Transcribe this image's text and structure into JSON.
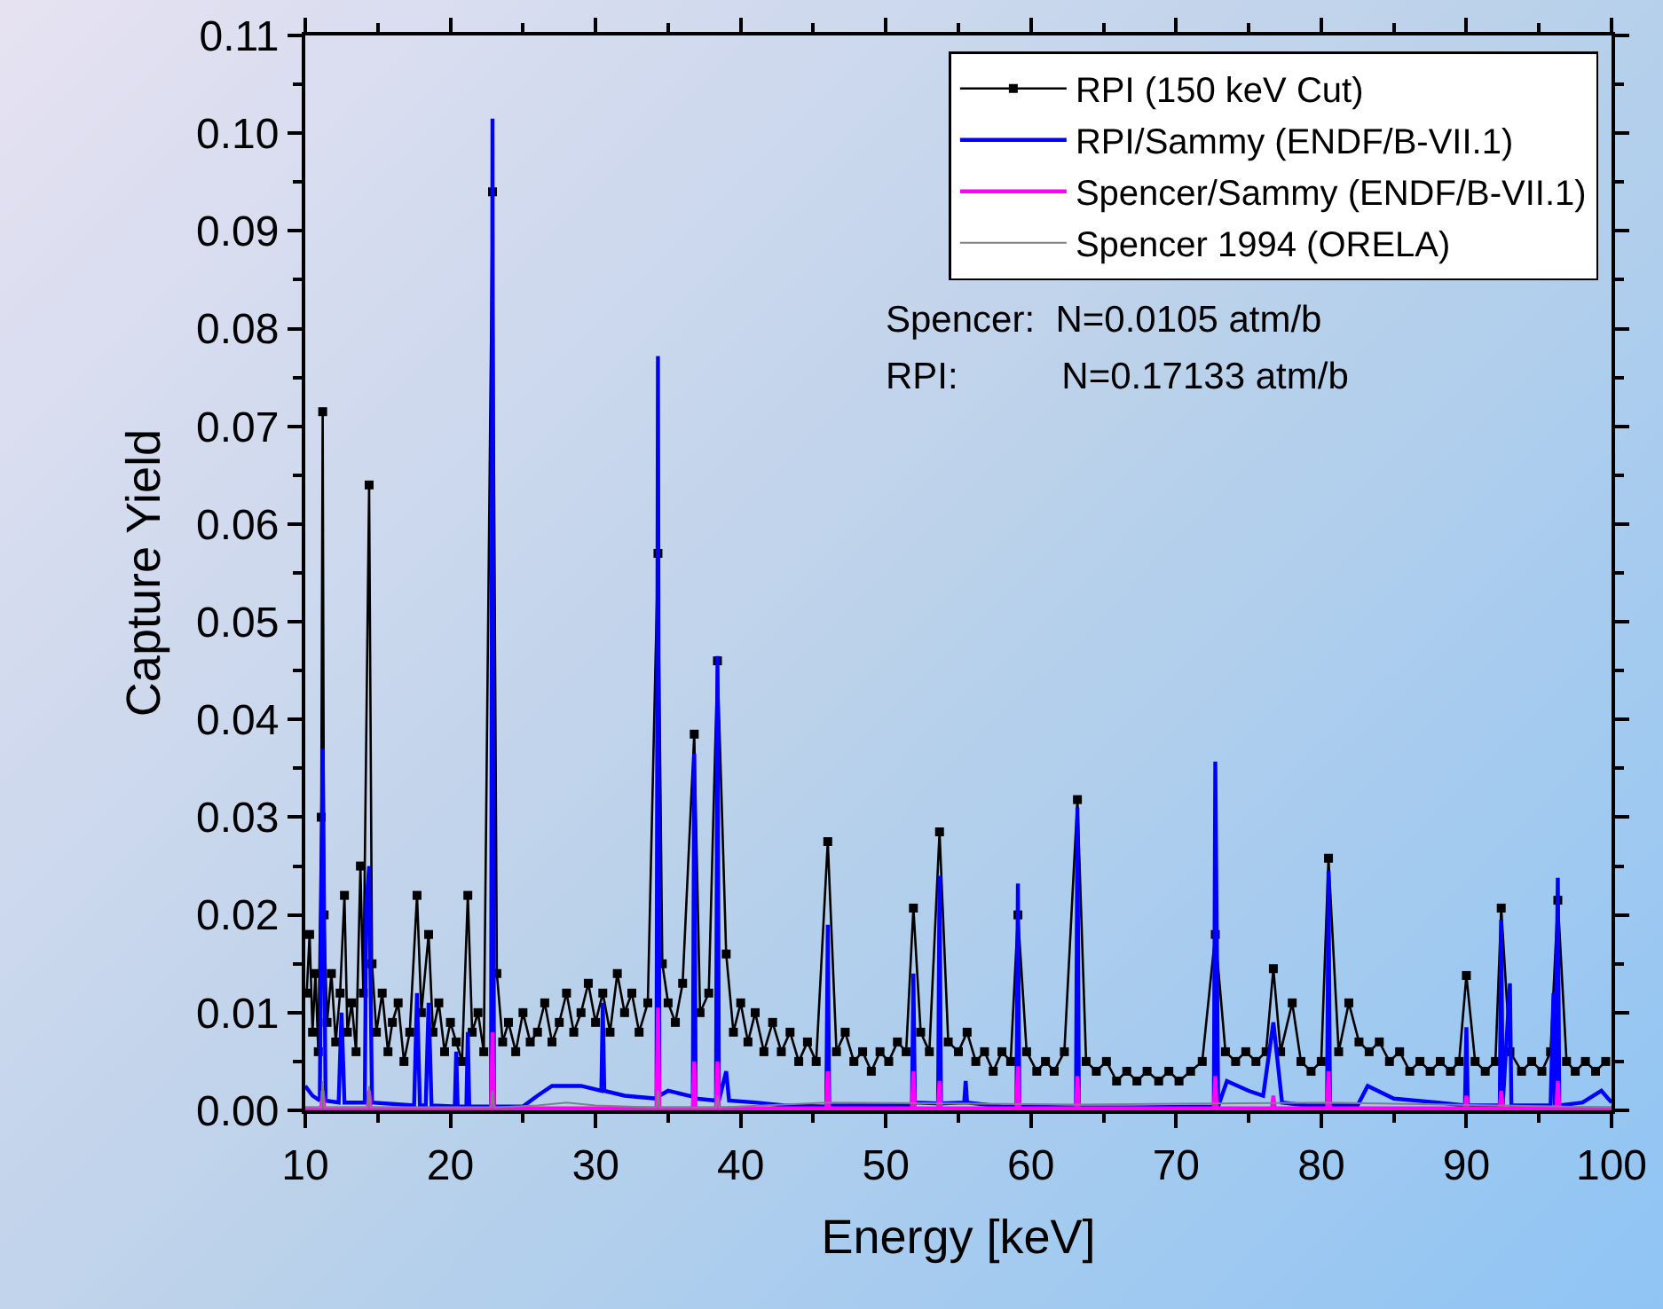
{
  "chart_data": {
    "type": "line",
    "xlabel": "Energy [keV]",
    "ylabel": "Capture Yield",
    "xlim": [
      10,
      100
    ],
    "xticks": [
      10,
      20,
      30,
      40,
      50,
      60,
      70,
      80,
      90,
      100
    ],
    "ylim": [
      0,
      0.11
    ],
    "yticks": [
      {
        "value": 0,
        "label": "0.00"
      },
      {
        "value": 0.01,
        "label": "0.01"
      },
      {
        "value": 0.02,
        "label": "0.02"
      },
      {
        "value": 0.03,
        "label": "0.03"
      },
      {
        "value": 0.04,
        "label": "0.04"
      },
      {
        "value": 0.05,
        "label": "0.05"
      },
      {
        "value": 0.06,
        "label": "0.06"
      },
      {
        "value": 0.07,
        "label": "0.07"
      },
      {
        "value": 0.08,
        "label": "0.08"
      },
      {
        "value": 0.09,
        "label": "0.09"
      },
      {
        "value": 0.1,
        "label": "0.10"
      },
      {
        "value": 0.11,
        "label": "0.11"
      }
    ],
    "grid": false,
    "legend": "top right",
    "line_style": "solid",
    "annotations": [
      "Spencer:  N=0.0105 atm/b",
      "RPI:          N=0.17133 atm/b"
    ],
    "series": [
      {
        "name": "RPI (150 keV Cut)",
        "color": "#000000",
        "marker": "square",
        "x": [
          10.1,
          10.3,
          10.5,
          10.7,
          10.9,
          11.1,
          11.2,
          11.3,
          11.5,
          11.8,
          12.1,
          12.4,
          12.7,
          12.9,
          13.2,
          13.5,
          13.8,
          14.0,
          14.4,
          14.6,
          14.9,
          15.3,
          15.7,
          16.0,
          16.4,
          16.8,
          17.2,
          17.7,
          18.0,
          18.5,
          18.8,
          19.2,
          19.6,
          20.0,
          20.4,
          20.8,
          21.2,
          21.5,
          21.9,
          22.3,
          22.9,
          23.2,
          23.6,
          24.0,
          24.5,
          25.0,
          25.5,
          26.0,
          26.5,
          27.0,
          27.5,
          28.0,
          28.5,
          29.0,
          29.5,
          30.0,
          30.5,
          31.0,
          31.5,
          32.0,
          32.5,
          33.0,
          33.6,
          34.3,
          34.6,
          35.0,
          35.5,
          36.0,
          36.8,
          37.2,
          37.8,
          38.4,
          39.0,
          39.5,
          40.0,
          40.5,
          41.0,
          41.6,
          42.2,
          42.8,
          43.4,
          44.0,
          44.6,
          45.2,
          46.0,
          46.6,
          47.2,
          47.8,
          48.4,
          49.0,
          49.6,
          50.2,
          50.8,
          51.4,
          51.9,
          52.4,
          53.0,
          53.7,
          54.3,
          55.0,
          55.6,
          56.2,
          56.8,
          57.4,
          58.0,
          58.6,
          59.1,
          59.7,
          60.4,
          61.0,
          61.6,
          62.3,
          63.2,
          63.8,
          64.5,
          65.2,
          65.9,
          66.6,
          67.3,
          68.0,
          68.8,
          69.5,
          70.2,
          71.0,
          71.8,
          72.7,
          73.4,
          74.1,
          74.8,
          75.5,
          76.2,
          76.7,
          77.2,
          78.0,
          78.6,
          79.3,
          80.0,
          80.5,
          81.2,
          81.9,
          82.6,
          83.3,
          84.0,
          84.7,
          85.4,
          86.1,
          86.8,
          87.5,
          88.2,
          88.9,
          89.5,
          90.0,
          90.6,
          91.3,
          92.0,
          92.4,
          93.0,
          93.8,
          94.5,
          95.2,
          95.8,
          96.3,
          96.9,
          97.5,
          98.2,
          98.9,
          99.6
        ],
        "values": [
          0.012,
          0.018,
          0.008,
          0.014,
          0.006,
          0.03,
          0.0715,
          0.02,
          0.009,
          0.014,
          0.007,
          0.012,
          0.022,
          0.008,
          0.011,
          0.006,
          0.025,
          0.012,
          0.064,
          0.015,
          0.008,
          0.012,
          0.006,
          0.009,
          0.011,
          0.005,
          0.008,
          0.022,
          0.01,
          0.018,
          0.008,
          0.011,
          0.006,
          0.009,
          0.007,
          0.005,
          0.022,
          0.008,
          0.01,
          0.006,
          0.094,
          0.014,
          0.007,
          0.009,
          0.006,
          0.01,
          0.007,
          0.008,
          0.011,
          0.007,
          0.009,
          0.012,
          0.008,
          0.01,
          0.013,
          0.009,
          0.012,
          0.008,
          0.014,
          0.01,
          0.012,
          0.008,
          0.011,
          0.057,
          0.015,
          0.011,
          0.009,
          0.013,
          0.0385,
          0.01,
          0.012,
          0.046,
          0.016,
          0.008,
          0.011,
          0.007,
          0.01,
          0.006,
          0.009,
          0.006,
          0.008,
          0.005,
          0.007,
          0.005,
          0.0275,
          0.006,
          0.008,
          0.005,
          0.006,
          0.004,
          0.006,
          0.005,
          0.007,
          0.006,
          0.0207,
          0.008,
          0.006,
          0.0285,
          0.007,
          0.006,
          0.008,
          0.005,
          0.006,
          0.004,
          0.006,
          0.005,
          0.02,
          0.006,
          0.004,
          0.005,
          0.004,
          0.006,
          0.0318,
          0.005,
          0.004,
          0.005,
          0.003,
          0.004,
          0.003,
          0.004,
          0.003,
          0.004,
          0.003,
          0.004,
          0.005,
          0.018,
          0.006,
          0.005,
          0.006,
          0.005,
          0.006,
          0.0145,
          0.006,
          0.011,
          0.005,
          0.004,
          0.005,
          0.0258,
          0.006,
          0.011,
          0.007,
          0.006,
          0.007,
          0.005,
          0.006,
          0.004,
          0.005,
          0.004,
          0.005,
          0.004,
          0.005,
          0.0138,
          0.005,
          0.004,
          0.005,
          0.0207,
          0.006,
          0.004,
          0.005,
          0.004,
          0.006,
          0.0215,
          0.005,
          0.004,
          0.005,
          0.004,
          0.005
        ]
      },
      {
        "name": "RPI/Sammy (ENDF/B-VII.1)",
        "color": "#0000ff",
        "x": [
          10,
          10.5,
          11.0,
          11.2,
          11.4,
          12.3,
          12.5,
          12.7,
          14.1,
          14.2,
          14.4,
          14.6,
          17.5,
          17.7,
          17.9,
          18.3,
          18.5,
          18.7,
          20.3,
          20.4,
          20.5,
          21.1,
          21.2,
          21.3,
          22.8,
          22.9,
          23.0,
          25.0,
          26.0,
          27.0,
          29.0,
          30.4,
          30.5,
          30.6,
          32.0,
          34.2,
          34.3,
          34.4,
          35.0,
          36.7,
          36.8,
          36.9,
          38.3,
          38.4,
          38.5,
          39.0,
          39.2,
          41.0,
          43.0,
          45.9,
          46.0,
          46.1,
          48.0,
          51.8,
          51.9,
          52.0,
          53.6,
          53.7,
          53.8,
          55.4,
          55.5,
          55.6,
          58.0,
          59.0,
          59.1,
          59.2,
          63.1,
          63.2,
          63.3,
          67.0,
          72.6,
          72.7,
          72.9,
          73.5,
          75.0,
          76.0,
          76.7,
          77.3,
          79.0,
          80.4,
          80.5,
          80.6,
          82.5,
          83.2,
          85.0,
          88.0,
          89.9,
          90.0,
          90.1,
          92.3,
          92.4,
          92.5,
          93.0,
          93.1,
          95.8,
          96.0,
          96.1,
          96.3,
          96.4,
          98.0,
          99.3,
          100
        ],
        "values": [
          0.0025,
          0.0015,
          0.001,
          0.037,
          0.001,
          0.0008,
          0.01,
          0.0008,
          0.0008,
          0.021,
          0.025,
          0.0008,
          0.0005,
          0.012,
          0.0005,
          0.0005,
          0.011,
          0.0005,
          0.0004,
          0.006,
          0.0004,
          0.0004,
          0.008,
          0.0004,
          0.0004,
          0.1015,
          0.0004,
          0.0004,
          0.0015,
          0.0025,
          0.0025,
          0.002,
          0.011,
          0.002,
          0.0015,
          0.0012,
          0.0772,
          0.0015,
          0.002,
          0.0014,
          0.0365,
          0.0012,
          0.001,
          0.0465,
          0.001,
          0.004,
          0.001,
          0.0008,
          0.0005,
          0.0004,
          0.019,
          0.0005,
          0.0005,
          0.0005,
          0.014,
          0.0008,
          0.0007,
          0.024,
          0.0007,
          0.0008,
          0.003,
          0.0008,
          0.0004,
          0.0004,
          0.0232,
          0.0004,
          0.0003,
          0.031,
          0.0003,
          0.0003,
          0.0004,
          0.0357,
          0.0004,
          0.003,
          0.002,
          0.0015,
          0.009,
          0.0008,
          0.0005,
          0.0005,
          0.0245,
          0.0005,
          0.0005,
          0.0025,
          0.0012,
          0.0008,
          0.0005,
          0.0085,
          0.0005,
          0.0005,
          0.0195,
          0.0005,
          0.013,
          0.0005,
          0.0005,
          0.012,
          0.0005,
          0.0238,
          0.0005,
          0.0008,
          0.002,
          0.0008
        ]
      },
      {
        "name": "Spencer/Sammy (ENDF/B-VII.1)",
        "color": "#ff00ff",
        "x": [
          10,
          11.1,
          11.2,
          11.3,
          14.3,
          14.4,
          14.5,
          22.8,
          22.9,
          23.0,
          34.2,
          34.3,
          34.4,
          36.7,
          36.8,
          36.9,
          38.3,
          38.4,
          38.5,
          45.9,
          46.0,
          46.1,
          51.8,
          51.9,
          52.0,
          53.6,
          53.7,
          53.8,
          59.0,
          59.1,
          59.2,
          63.1,
          63.2,
          63.3,
          72.6,
          72.7,
          72.8,
          76.6,
          76.7,
          76.8,
          80.4,
          80.5,
          80.6,
          89.9,
          90.0,
          90.1,
          92.3,
          92.4,
          92.5,
          96.2,
          96.3,
          96.4,
          100
        ],
        "values": [
          0.0002,
          0.0002,
          0.002,
          0.0002,
          0.0002,
          0.002,
          0.0002,
          0.0002,
          0.008,
          0.0002,
          0.0002,
          0.0105,
          0.0002,
          0.0002,
          0.005,
          0.0002,
          0.0002,
          0.005,
          0.0002,
          0.0002,
          0.004,
          0.0002,
          0.0002,
          0.004,
          0.0002,
          0.0002,
          0.003,
          0.0002,
          0.0002,
          0.0045,
          0.0002,
          0.0002,
          0.0035,
          0.0002,
          0.0002,
          0.0035,
          0.0002,
          0.0002,
          0.0015,
          0.0002,
          0.0002,
          0.004,
          0.0002,
          0.0002,
          0.0015,
          0.0002,
          0.0002,
          0.002,
          0.0002,
          0.0002,
          0.003,
          0.0002,
          0.0002
        ]
      },
      {
        "name": "Spencer 1994 (ORELA)",
        "color": "#808080",
        "x": [
          10,
          11.1,
          11.2,
          11.3,
          14.3,
          14.4,
          14.5,
          22.8,
          22.9,
          23.0,
          26.0,
          28.0,
          30.0,
          34.2,
          34.3,
          34.4,
          38.3,
          38.4,
          38.5,
          46.0,
          63.2,
          80.5,
          100
        ],
        "values": [
          0.0003,
          0.0003,
          0.003,
          0.0003,
          0.0003,
          0.0025,
          0.0003,
          0.0003,
          0.002,
          0.0003,
          0.0005,
          0.0008,
          0.0005,
          0.0003,
          0.002,
          0.0003,
          0.0003,
          0.0015,
          0.0003,
          0.0008,
          0.0006,
          0.0008,
          0.0003
        ]
      }
    ]
  }
}
